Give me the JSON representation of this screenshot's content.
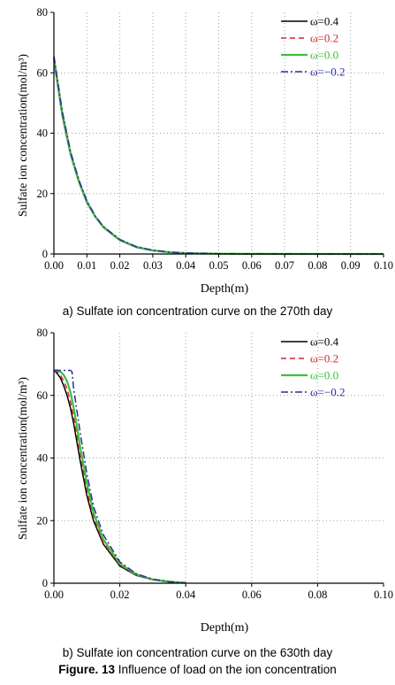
{
  "colors": {
    "w04": "#000000",
    "w02": "#d62728",
    "w00": "#3cc03c",
    "wm02": "#2a2f9a",
    "grid": "#a0a0a0"
  },
  "caption_a": "a) Sulfate ion concentration curve on the 270th day",
  "caption_b": "b) Sulfate ion concentration curve on the 630th day",
  "figure_label": "Figure. 13",
  "figure_caption": " Influence of load on the ion concentration",
  "chart_data": [
    {
      "type": "line",
      "title": "",
      "xlabel": "Depth(m)",
      "ylabel": "Sulfate ion concentration(mol/m³)",
      "xlim": [
        0,
        0.1
      ],
      "ylim": [
        0,
        80
      ],
      "xticks": [
        "0.00",
        "0.01",
        "0.02",
        "0.03",
        "0.04",
        "0.05",
        "0.06",
        "0.07",
        "0.08",
        "0.09",
        "0.10"
      ],
      "yticks": [
        "0",
        "20",
        "40",
        "60",
        "80"
      ],
      "grid": true,
      "legend_position": "top-right",
      "series": [
        {
          "name": "ω=0.4",
          "x": [
            0,
            0.0025,
            0.005,
            0.0075,
            0.01,
            0.0125,
            0.015,
            0.02,
            0.025,
            0.03,
            0.035,
            0.04,
            0.05,
            0.06,
            0.1
          ],
          "y": [
            64,
            46,
            33,
            24,
            17,
            12.3,
            8.8,
            4.5,
            2.2,
            1.1,
            0.55,
            0.28,
            0.08,
            0.02,
            0
          ]
        },
        {
          "name": "ω=0.2",
          "x": [
            0,
            0.0025,
            0.005,
            0.0075,
            0.01,
            0.0125,
            0.015,
            0.02,
            0.025,
            0.03,
            0.035,
            0.04,
            0.05,
            0.06,
            0.1
          ],
          "y": [
            64.5,
            46.5,
            33.3,
            24.2,
            17.2,
            12.4,
            8.9,
            4.6,
            2.3,
            1.15,
            0.6,
            0.3,
            0.08,
            0.02,
            0
          ]
        },
        {
          "name": "ω=0.0",
          "x": [
            0,
            0.0025,
            0.005,
            0.0075,
            0.01,
            0.0125,
            0.015,
            0.02,
            0.025,
            0.03,
            0.035,
            0.04,
            0.05,
            0.06,
            0.1
          ],
          "y": [
            65,
            47,
            33.6,
            24.4,
            17.4,
            12.5,
            9,
            4.7,
            2.35,
            1.2,
            0.6,
            0.3,
            0.09,
            0.02,
            0
          ]
        },
        {
          "name": "ω=−0.2",
          "x": [
            0,
            0.0025,
            0.005,
            0.0075,
            0.01,
            0.0125,
            0.015,
            0.02,
            0.025,
            0.03,
            0.035,
            0.04,
            0.05,
            0.06,
            0.1
          ],
          "y": [
            65.5,
            47.5,
            34,
            24.7,
            17.6,
            12.7,
            9.1,
            4.8,
            2.4,
            1.25,
            0.62,
            0.32,
            0.09,
            0.02,
            0
          ]
        }
      ]
    },
    {
      "type": "line",
      "title": "",
      "xlabel": "Depth(m)",
      "ylabel": "Sulfate ion concentration(mol/m³)",
      "xlim": [
        0,
        0.1
      ],
      "ylim": [
        0,
        80
      ],
      "xticks": [
        "0.00",
        "0.02",
        "0.04",
        "0.06",
        "0.08",
        "0.10"
      ],
      "yticks": [
        "0",
        "20",
        "40",
        "60",
        "80"
      ],
      "grid": true,
      "legend_position": "top-right",
      "series": [
        {
          "name": "ω=0.4",
          "x": [
            0,
            0.001,
            0.002,
            0.003,
            0.004,
            0.005,
            0.006,
            0.007,
            0.008,
            0.01,
            0.012,
            0.015,
            0.02,
            0.025,
            0.03,
            0.035,
            0.04
          ],
          "y": [
            68,
            67,
            65.5,
            63,
            60,
            56,
            51,
            45,
            39,
            28,
            20,
            12.5,
            5.5,
            2.5,
            1.1,
            0.4,
            0.1
          ]
        },
        {
          "name": "ω=0.2",
          "x": [
            0,
            0.001,
            0.002,
            0.003,
            0.004,
            0.005,
            0.006,
            0.007,
            0.008,
            0.01,
            0.012,
            0.015,
            0.02,
            0.025,
            0.03,
            0.035,
            0.04
          ],
          "y": [
            68,
            67.5,
            66.5,
            64.5,
            62,
            58,
            53,
            47,
            41,
            30,
            21,
            13,
            5.8,
            2.6,
            1.15,
            0.45,
            0.1
          ]
        },
        {
          "name": "ω=0.0",
          "x": [
            0,
            0.001,
            0.002,
            0.003,
            0.004,
            0.005,
            0.006,
            0.007,
            0.008,
            0.01,
            0.012,
            0.015,
            0.02,
            0.025,
            0.03,
            0.035,
            0.04
          ],
          "y": [
            68,
            68,
            67.5,
            66.5,
            64.5,
            61,
            56,
            50,
            43.5,
            32,
            22.5,
            14,
            6.2,
            2.8,
            1.2,
            0.5,
            0.12
          ]
        },
        {
          "name": "ω=−0.2",
          "x": [
            0,
            0.001,
            0.002,
            0.003,
            0.004,
            0.005,
            0.0055,
            0.006,
            0.007,
            0.008,
            0.01,
            0.012,
            0.015,
            0.02,
            0.025,
            0.03,
            0.035,
            0.04
          ],
          "y": [
            68,
            68,
            68,
            68,
            68,
            68,
            67.5,
            62,
            55,
            48,
            35,
            24.5,
            15.5,
            6.8,
            3,
            1.3,
            0.5,
            0.12
          ]
        }
      ]
    }
  ]
}
